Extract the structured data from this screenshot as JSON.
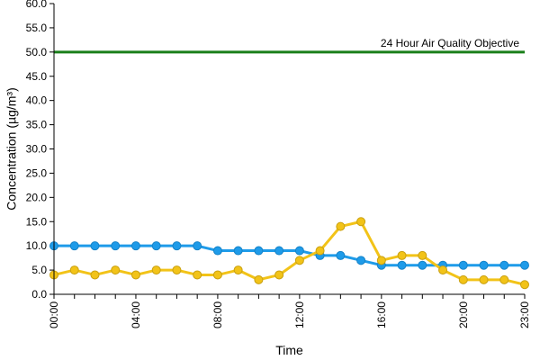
{
  "chart_data": {
    "type": "line",
    "title": "",
    "xlabel": "Time",
    "ylabel": "Concentration (µg/m³)",
    "ylim": [
      0,
      60
    ],
    "y_ticks": [
      "0.0",
      "5.0",
      "10.0",
      "15.0",
      "20.0",
      "25.0",
      "30.0",
      "35.0",
      "40.0",
      "45.0",
      "50.0",
      "55.0",
      "60.0"
    ],
    "x": [
      0,
      1,
      2,
      3,
      4,
      5,
      6,
      7,
      8,
      9,
      10,
      11,
      12,
      13,
      14,
      15,
      16,
      17,
      18,
      19,
      20,
      21,
      22,
      23
    ],
    "x_ticks": [
      {
        "hour": 0,
        "label": "00:00"
      },
      {
        "hour": 4,
        "label": "04:00"
      },
      {
        "hour": 8,
        "label": "08:00"
      },
      {
        "hour": 12,
        "label": "12:00"
      },
      {
        "hour": 16,
        "label": "16:00"
      },
      {
        "hour": 20,
        "label": "20:00"
      },
      {
        "hour": 23,
        "label": "23:00"
      }
    ],
    "grid": false,
    "legend": "none",
    "series": [
      {
        "color": "#1e9be9",
        "values": [
          10,
          10,
          10,
          10,
          10,
          10,
          10,
          10,
          9,
          9,
          9,
          9,
          9,
          8,
          8,
          7,
          6,
          6,
          6,
          6,
          6,
          6,
          6,
          6
        ]
      },
      {
        "color": "#f2c318",
        "values": [
          4,
          5,
          4,
          5,
          4,
          5,
          5,
          4,
          4,
          5,
          3,
          4,
          7,
          9,
          14,
          15,
          7,
          8,
          8,
          5,
          3,
          3,
          3,
          2
        ]
      }
    ],
    "reference_line": {
      "value": 50,
      "label": "24 Hour Air Quality Objective",
      "color": "#1a7f1a"
    }
  }
}
